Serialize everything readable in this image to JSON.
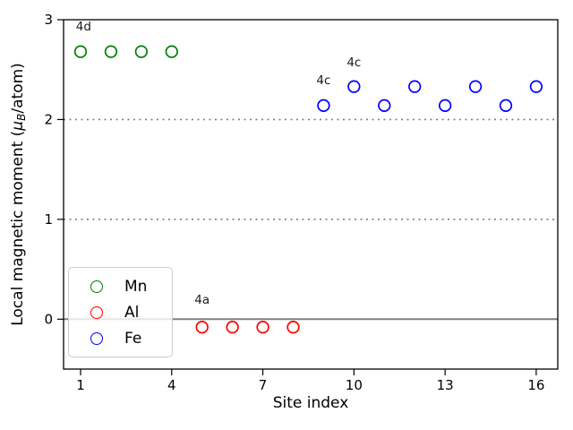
{
  "figure": {
    "background": "#ffffff"
  },
  "chart_data": {
    "type": "scatter",
    "title": "",
    "xlabel": "Site index",
    "ylabel": {
      "prefix": "Local magnetic moment (",
      "mu": "μ",
      "sub": "B",
      "suffix": "/atom)"
    },
    "xlim": [
      0.44,
      16.71
    ],
    "ylim": [
      -0.5,
      3.0
    ],
    "xticks": [
      1,
      4,
      7,
      10,
      13,
      16
    ],
    "yticks": [
      0,
      1,
      2,
      3
    ],
    "grid": {
      "dotted_y": [
        1,
        2
      ],
      "dotted_color": "#7f7f7f",
      "zero_line_y": 0,
      "zero_line_color": "#808080"
    },
    "marker": {
      "style": "open-circle",
      "radius": 6.3,
      "stroke_width": 1.7
    },
    "series": [
      {
        "name": "Mn",
        "color": "#008000",
        "x": [
          1,
          2,
          3,
          4
        ],
        "y": [
          2.68,
          2.68,
          2.68,
          2.68
        ]
      },
      {
        "name": "Al",
        "color": "#ff0000",
        "x": [
          5,
          6,
          7,
          8
        ],
        "y": [
          -0.08,
          -0.08,
          -0.08,
          -0.08
        ]
      },
      {
        "name": "Fe",
        "color": "#0000ff",
        "x": [
          9,
          10,
          11,
          12,
          13,
          14,
          15,
          16
        ],
        "y": [
          2.14,
          2.33,
          2.14,
          2.33,
          2.14,
          2.33,
          2.14,
          2.33
        ]
      }
    ],
    "annotations": [
      {
        "text": "4d",
        "x": 1.1,
        "y": 2.93
      },
      {
        "text": "4a",
        "x": 5.0,
        "y": 0.19
      },
      {
        "text": "4c",
        "x": 9.0,
        "y": 2.39
      },
      {
        "text": "4c",
        "x": 10.0,
        "y": 2.57
      }
    ],
    "legend": {
      "position": "lower-left-inside",
      "items": [
        "Mn",
        "Al",
        "Fe"
      ]
    }
  }
}
